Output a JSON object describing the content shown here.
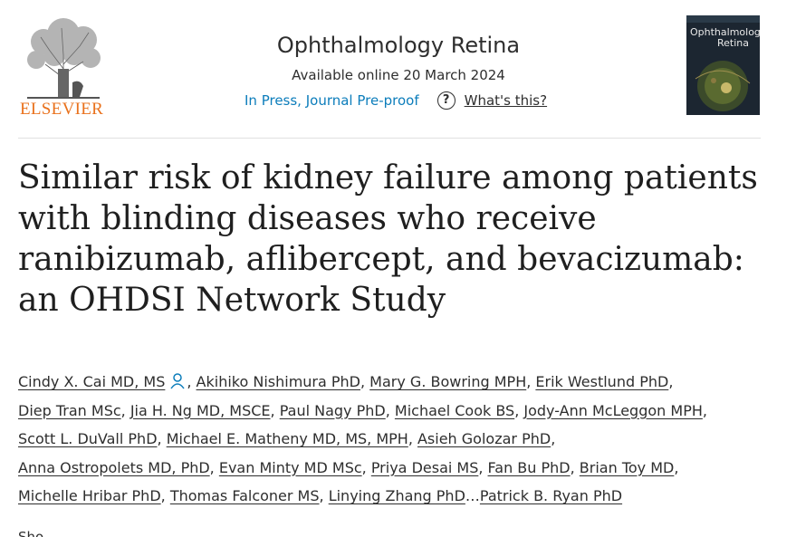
{
  "publisher": {
    "name": "ELSEVIER"
  },
  "journal": {
    "name": "Ophthalmology Retina",
    "available": "Available online 20 March 2024",
    "status": "In Press, Journal Pre-proof",
    "help_label": "What's this?",
    "help_glyph": "?",
    "cover_title_line1": "Ophthalmology",
    "cover_title_line2": "Retina"
  },
  "article": {
    "title": "Similar risk of kidney failure among patients with blinding diseases who receive ranibizumab, aflibercept, and bevacizumab: an OHDSI Network Study"
  },
  "authors": [
    {
      "name": "Cindy X. Cai MD, MS",
      "icon": "person-icon"
    },
    {
      "name": "Akihiko Nishimura PhD"
    },
    {
      "name": "Mary G. Bowring MPH"
    },
    {
      "name": "Erik Westlund PhD"
    },
    {
      "name": "Diep Tran MSc"
    },
    {
      "name": "Jia H. Ng MD, MSCE"
    },
    {
      "name": "Paul Nagy PhD"
    },
    {
      "name": "Michael Cook BS"
    },
    {
      "name": "Jody-Ann McLeggon MPH"
    },
    {
      "name": "Scott L. DuVall PhD"
    },
    {
      "name": "Michael E. Matheny MD, MS, MPH"
    },
    {
      "name": "Asieh Golozar PhD"
    },
    {
      "name": "Anna Ostropolets MD, PhD"
    },
    {
      "name": "Evan Minty MD MSc"
    },
    {
      "name": "Priya Desai MS"
    },
    {
      "name": "Fan Bu PhD"
    },
    {
      "name": "Brian Toy MD"
    },
    {
      "name": "Michelle Hribar PhD"
    },
    {
      "name": "Thomas Falconer MS"
    },
    {
      "name": "Linying Zhang PhD"
    },
    {
      "name": "Patrick B. Ryan PhD"
    }
  ],
  "authors_ellipsis": "…",
  "show_more_partial": "Sho"
}
